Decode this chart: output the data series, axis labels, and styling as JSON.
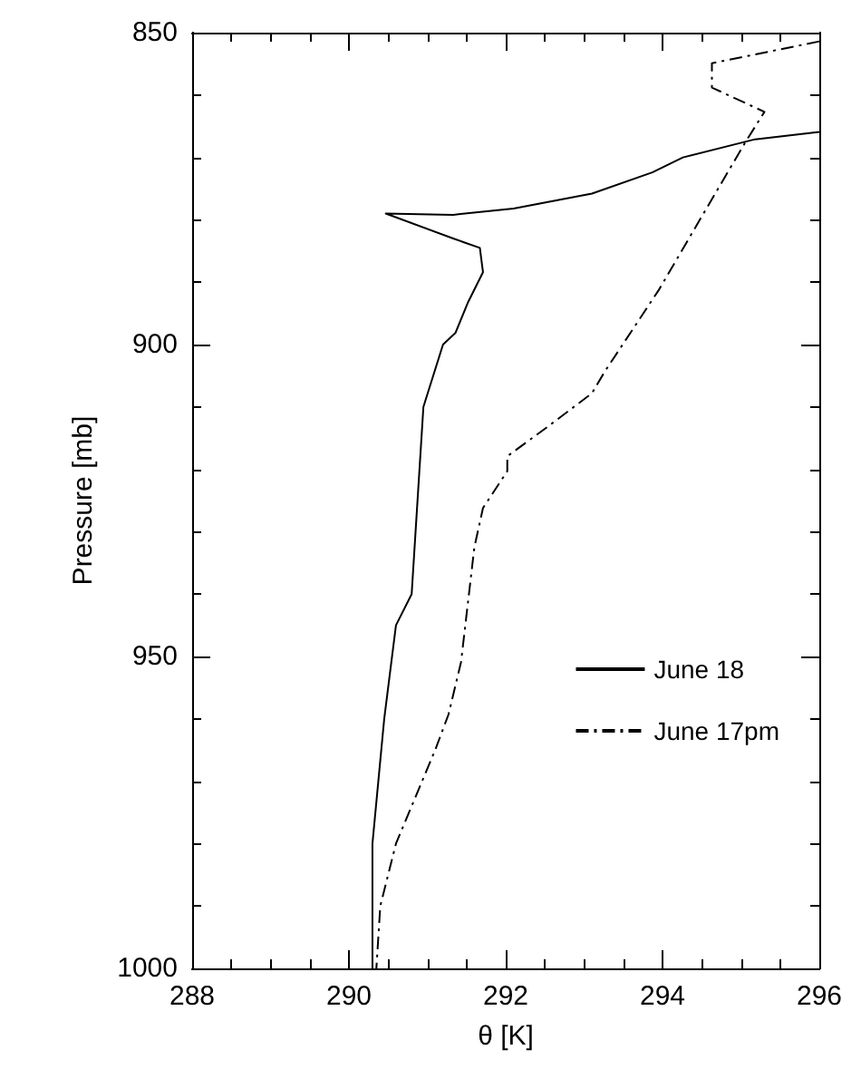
{
  "chart_data": {
    "type": "line",
    "xlabel": "θ [K]",
    "ylabel": "Pressure [mb]",
    "xlim": [
      288,
      296
    ],
    "xticks": [
      288,
      290,
      292,
      294,
      296
    ],
    "ylim": [
      1000,
      850
    ],
    "yticks": [
      850,
      900,
      950,
      1000
    ],
    "grid": false,
    "legend": "right",
    "marker": "none",
    "series": [
      {
        "name": "June 18",
        "color": "#000000",
        "line_style": "solid",
        "x": [
          296,
          295.18,
          294.26,
          293.87,
          293.1,
          292.1,
          291.33,
          290.47,
          291.33,
          291.67,
          291.71,
          291.52,
          291.36,
          291.2,
          290.95,
          290.85,
          290.8,
          290.6,
          290.45,
          290.3,
          290.3,
          290.3
        ],
        "values": [
          865.9,
          867.1,
          870,
          872.4,
          875.8,
          878.2,
          879.2,
          879,
          883,
          884.5,
          888.4,
          893.2,
          898.1,
          900,
          910,
          930,
          940,
          945,
          960,
          980,
          990,
          1000
        ]
      },
      {
        "name": "June 17pm",
        "color": "#000000",
        "line_style": "dashed",
        "x": [
          296,
          294.63,
          294.63,
          295.3,
          295.06,
          294.49,
          293.95,
          293.26,
          293.1,
          292.49,
          292.02,
          292.02,
          291.71,
          291.6,
          291.43,
          291.27,
          291.1,
          290.6,
          290.4,
          290.35
        ],
        "values": [
          851.4,
          854.9,
          858.8,
          862.7,
          867.5,
          879.7,
          891.3,
          904.4,
          907.8,
          913.6,
          917.9,
          920.3,
          926.2,
          932.5,
          950.9,
          959.3,
          965,
          980,
          990,
          1000
        ]
      }
    ]
  }
}
